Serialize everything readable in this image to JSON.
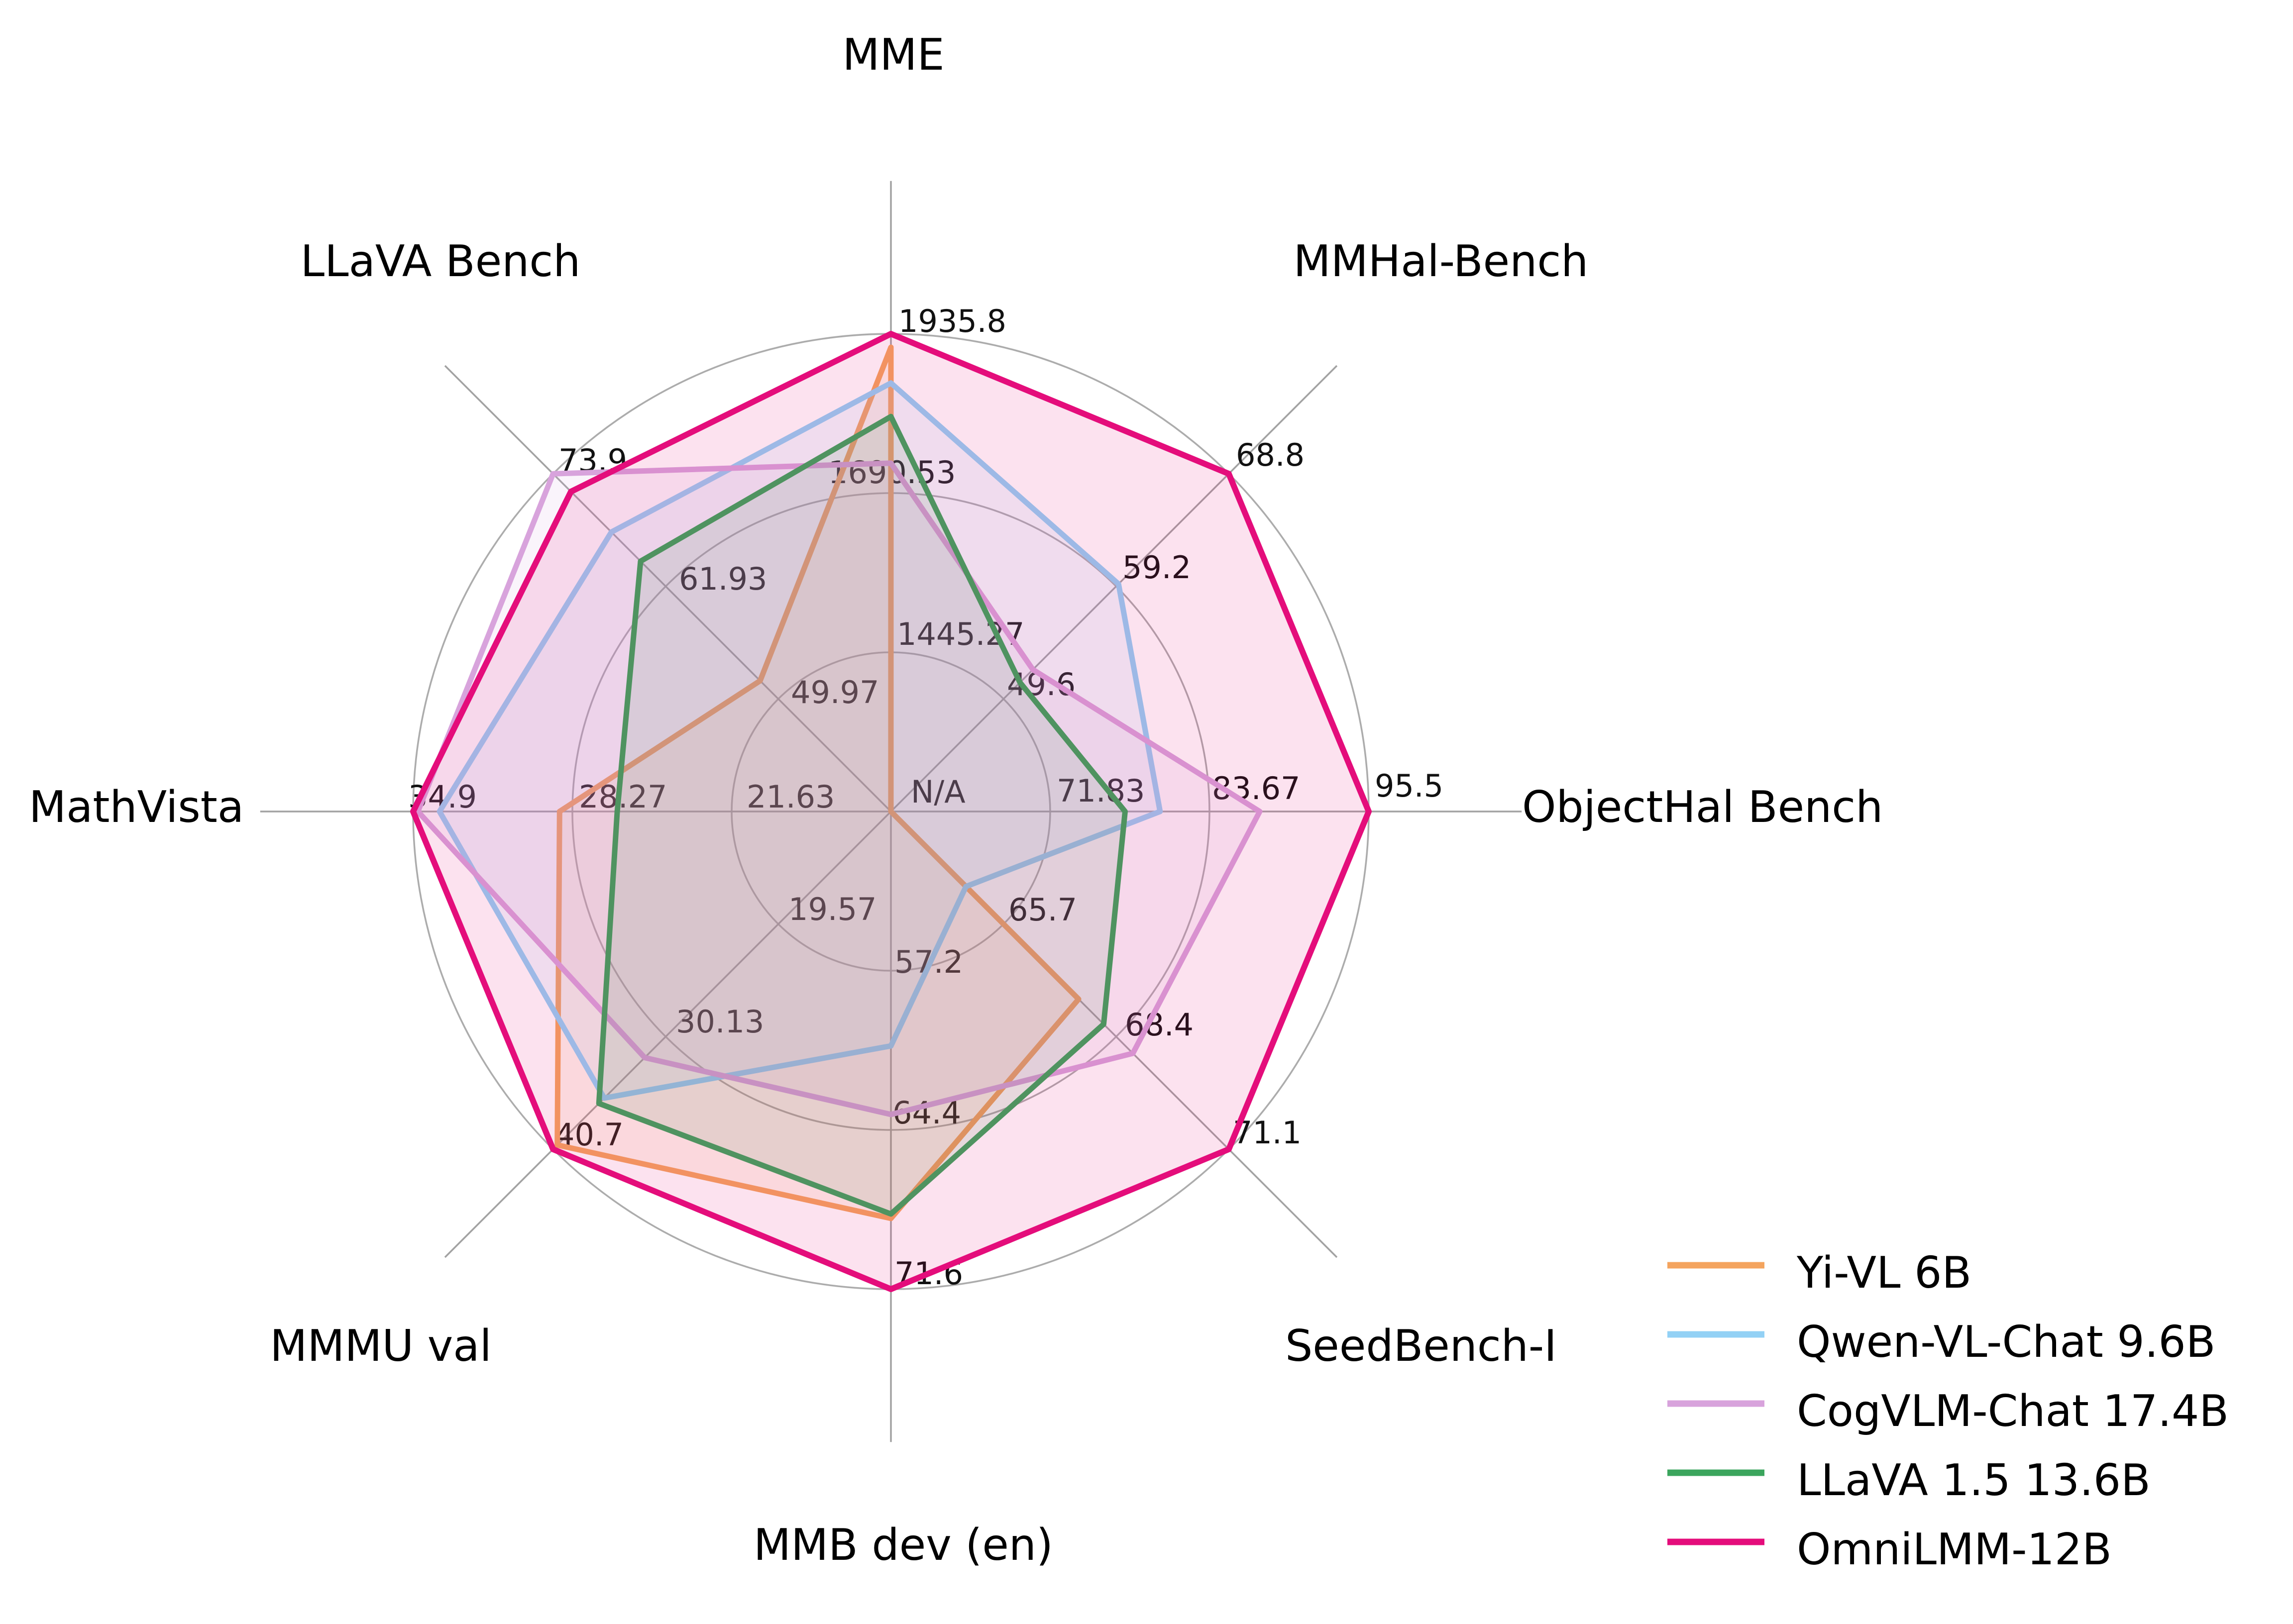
{
  "page": {
    "background_color": "#ffffff"
  },
  "chart_data": {
    "type": "radar",
    "title": "",
    "axes": [
      {
        "label": "MME",
        "angle_deg": 90,
        "min": 1200.0,
        "max": 1935.8,
        "ticks": [
          "1445.27",
          "1690.53",
          "1935.8"
        ]
      },
      {
        "label": "MMHal-Bench",
        "angle_deg": 45,
        "min": 40.0,
        "max": 68.8,
        "ticks": [
          "49.6",
          "59.2",
          "68.8"
        ]
      },
      {
        "label": "ObjectHal Bench",
        "angle_deg": 0,
        "min": 60.0,
        "max": 95.5,
        "ticks": [
          "71.83",
          "83.67",
          "95.5"
        ]
      },
      {
        "label": "SeedBench-I",
        "angle_deg": -45,
        "min": 63.0,
        "max": 71.1,
        "ticks": [
          "65.7",
          "68.4",
          "71.1"
        ]
      },
      {
        "label": "MMB dev (en)",
        "angle_deg": -90,
        "min": 50.0,
        "max": 71.6,
        "ticks": [
          "57.2",
          "64.4",
          "71.6"
        ]
      },
      {
        "label": "MMMU val",
        "angle_deg": -135,
        "min": 9.0,
        "max": 40.7,
        "ticks": [
          "19.57",
          "30.13",
          "40.7"
        ]
      },
      {
        "label": "MathVista",
        "angle_deg": 180,
        "min": 15.0,
        "max": 34.9,
        "ticks": [
          "21.63",
          "28.27",
          "34.9"
        ]
      },
      {
        "label": "LLaVA Bench",
        "angle_deg": 135,
        "min": 38.0,
        "max": 73.9,
        "ticks": [
          "49.97",
          "61.93",
          "73.9"
        ]
      }
    ],
    "center_tick_label": "N/A",
    "series": [
      {
        "name": "Yi-VL 6B",
        "color": "#F4A45E",
        "values": [
          1915.1,
          null,
          null,
          67.5,
          68.4,
          40.3,
          28.8,
          51.9
        ]
      },
      {
        "name": "Qwen-VL-Chat 9.6B",
        "color": "#93D1F5",
        "values": [
          1860.0,
          59.4,
          80.0,
          64.8,
          60.6,
          35.9,
          33.8,
          67.7
        ]
      },
      {
        "name": "CogVLM-Chat 17.4B",
        "color": "#D8A3DC",
        "values": [
          1736.6,
          52.1,
          87.4,
          68.8,
          63.7,
          32.1,
          34.7,
          73.9
        ]
      },
      {
        "name": "LLaVA 1.5 13.6B",
        "color": "#3BA55D",
        "values": [
          1808.4,
          51.0,
          77.4,
          68.1,
          68.2,
          36.4,
          26.4,
          64.6
        ]
      },
      {
        "name": "OmniLMM-12B",
        "color": "#E40D7B",
        "values": [
          1935.8,
          68.8,
          95.5,
          71.1,
          71.6,
          40.7,
          34.9,
          72.0
        ]
      }
    ],
    "grid": {
      "rings": 3,
      "tick_positions": [
        0.3333,
        0.6667,
        1.0
      ],
      "ring_color": "#ACACAC",
      "spoke_color": "#A2A2A2"
    },
    "legend": {
      "position": "lower-right"
    },
    "style": {
      "fill_opacity": 0.12,
      "tick_label_color": "#111111",
      "axis_title_color": "#000000",
      "legend_label_color": "#000000"
    },
    "notes": "Values marked null are plotted at the chart center, labeled N/A"
  }
}
